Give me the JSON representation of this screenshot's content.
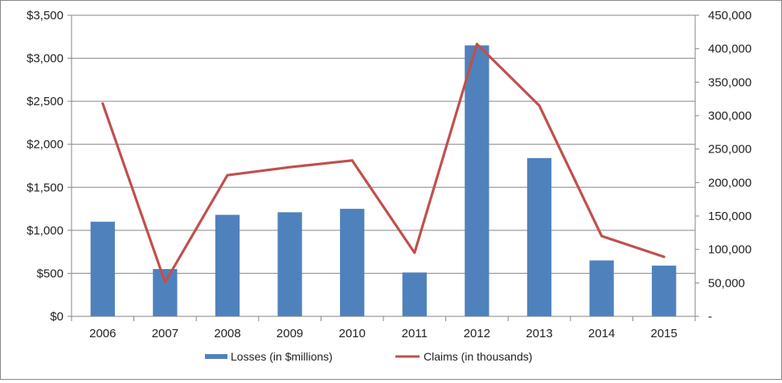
{
  "chart_data": {
    "type": "bar",
    "title": "",
    "categories": [
      "2006",
      "2007",
      "2008",
      "2009",
      "2010",
      "2011",
      "2012",
      "2013",
      "2014",
      "2015"
    ],
    "series": [
      {
        "name": "Losses (in $millions)",
        "type": "bar",
        "axis": "left",
        "color": "#4F81BD",
        "values": [
          1100,
          550,
          1180,
          1210,
          1250,
          510,
          3150,
          1840,
          650,
          590
        ]
      },
      {
        "name": "Claims (in thousands)",
        "type": "line",
        "axis": "right",
        "color": "#C0504D",
        "values": [
          318000,
          51000,
          211000,
          223000,
          233000,
          95000,
          407000,
          315000,
          120000,
          89000
        ]
      }
    ],
    "y_left": {
      "ylim": [
        0,
        3500
      ],
      "ticks": [
        0,
        500,
        1000,
        1500,
        2000,
        2500,
        3000,
        3500
      ],
      "tick_labels": [
        "$0",
        "$500",
        "$1,000",
        "$1,500",
        "$2,000",
        "$2,500",
        "$3,000",
        "$3,500"
      ]
    },
    "y_right": {
      "ylim": [
        0,
        450000
      ],
      "ticks": [
        0,
        50000,
        100000,
        150000,
        200000,
        250000,
        300000,
        350000,
        400000,
        450000
      ],
      "tick_labels": [
        "-",
        "50,000",
        "100,000",
        "150,000",
        "200,000",
        "250,000",
        "300,000",
        "350,000",
        "400,000",
        "450,000"
      ]
    },
    "grid": true,
    "legend": "bottom"
  }
}
